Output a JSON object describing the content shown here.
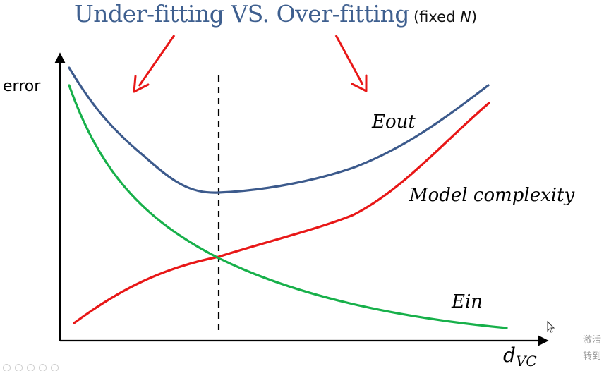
{
  "title": {
    "main": "Under-fitting  VS. Over-fitting",
    "sub_prefix": "(fixed ",
    "sub_var": "N",
    "sub_suffix": ")"
  },
  "axes": {
    "ylabel": "error",
    "xlabel_main": "d",
    "xlabel_sub": "VC"
  },
  "curves": {
    "eout_label": "Eout",
    "complexity_label": "Model complexity",
    "ein_label": "Ein"
  },
  "colors": {
    "title": "#3e5f8f",
    "eout": "#3c5a8c",
    "complexity": "#e81717",
    "ein": "#17b04a",
    "arrows": "#e81717",
    "axis": "#000000"
  },
  "watermark": {
    "line1": "激活",
    "line2": "转到"
  }
}
